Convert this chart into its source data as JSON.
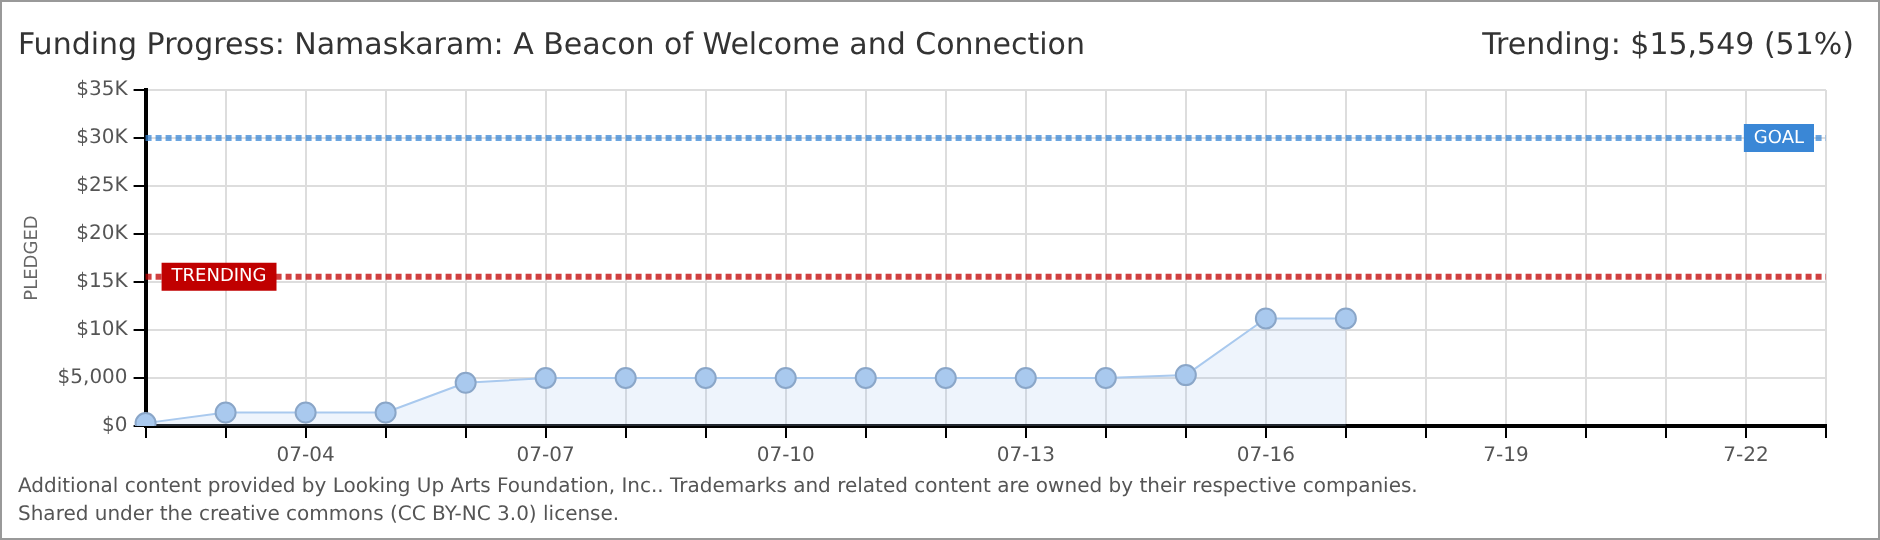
{
  "chart_data": {
    "type": "area",
    "title": "Funding Progress: Namaskaram: A Beacon of Welcome and Connection",
    "ylabel": "PLEDGED",
    "annotations": [
      "Trending: $15,549 (51%)",
      "Additional content provided by Looking Up Arts Foundation, Inc.. Trademarks and related content are owned by their respective companies.",
      "Shared under the creative commons (CC BY-NC 3.0) license."
    ],
    "categories": [
      null,
      null,
      "07-04",
      null,
      null,
      "07-07",
      null,
      null,
      "07-10",
      null,
      null,
      "07-13",
      null,
      null,
      "07-16",
      null,
      null,
      "7-19",
      null,
      null,
      "7-22",
      null
    ],
    "series": [
      {
        "color": "#a9c9ee",
        "values": [
          300,
          1400,
          1400,
          1400,
          4500,
          5000,
          5000,
          5000,
          5000,
          5000,
          5000,
          5000,
          5000,
          5300,
          11200,
          11200,
          null,
          null,
          null,
          null,
          null,
          null
        ]
      }
    ],
    "ylim": [
      0,
      35000
    ],
    "yticks": [
      {
        "value": 0,
        "label": "$0"
      },
      {
        "value": 5000,
        "label": "$5,000"
      },
      {
        "value": 10000,
        "label": "$10K"
      },
      {
        "value": 15000,
        "label": "$15K"
      },
      {
        "value": 20000,
        "label": "$20K"
      },
      {
        "value": 25000,
        "label": "$25K"
      },
      {
        "value": 30000,
        "label": "$30K"
      },
      {
        "value": 35000,
        "label": "$35K"
      }
    ],
    "ref_lines": [
      {
        "axis": "y",
        "value": 30000,
        "label": "GOAL",
        "color": "#3a87d6",
        "line_style": "dotted"
      },
      {
        "axis": "y",
        "value": 15549,
        "label": "TRENDING",
        "color": "#c00000",
        "line_style": "dotted"
      }
    ],
    "grid": true,
    "marker": "circle",
    "legend": false
  }
}
